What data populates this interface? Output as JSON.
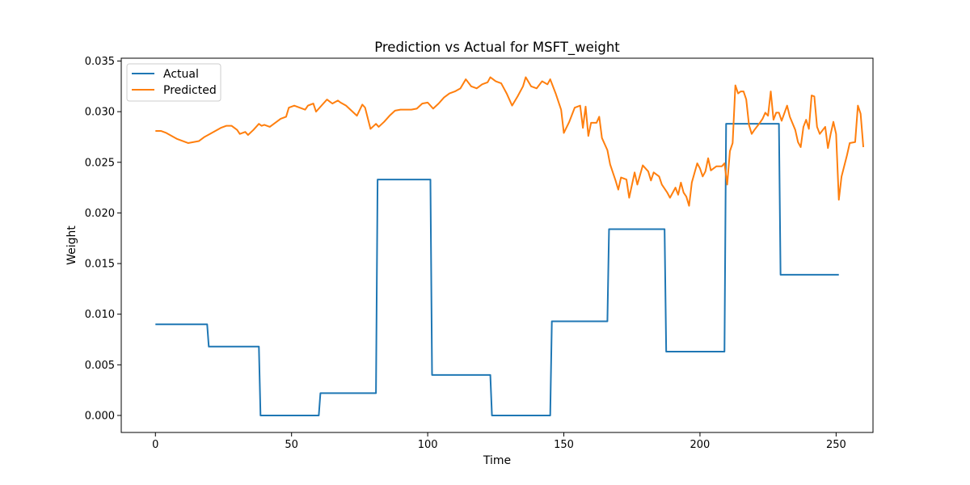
{
  "chart_data": {
    "type": "line",
    "title": "Prediction vs Actual for MSFT_weight",
    "xlabel": "Time",
    "ylabel": "Weight",
    "xlim": [
      -12.55,
      263.55
    ],
    "ylim": [
      -0.00168,
      0.03528
    ],
    "xticks": [
      0,
      50,
      100,
      150,
      200,
      250
    ],
    "xtick_labels": [
      "0",
      "50",
      "100",
      "150",
      "200",
      "250"
    ],
    "yticks": [
      0.0,
      0.005,
      0.01,
      0.015,
      0.02,
      0.025,
      0.03,
      0.035
    ],
    "ytick_labels": [
      "0.000",
      "0.005",
      "0.010",
      "0.015",
      "0.020",
      "0.025",
      "0.030",
      "0.035"
    ],
    "grid": false,
    "legend": {
      "position": "upper-left"
    },
    "series": [
      {
        "name": "Actual",
        "color": "#1f77b4",
        "step_points": [
          [
            0,
            0.009
          ],
          [
            19,
            0.009
          ],
          [
            19.6,
            0.0068
          ],
          [
            38,
            0.0068
          ],
          [
            38.6,
            0.0
          ],
          [
            60,
            0.0
          ],
          [
            60.6,
            0.0022
          ],
          [
            81,
            0.0022
          ],
          [
            81.6,
            0.0233
          ],
          [
            101,
            0.0233
          ],
          [
            101.6,
            0.004
          ],
          [
            123,
            0.004
          ],
          [
            123.6,
            0.0
          ],
          [
            145,
            0.0
          ],
          [
            145.6,
            0.0093
          ],
          [
            166,
            0.0093
          ],
          [
            166.6,
            0.0184
          ],
          [
            187,
            0.0184
          ],
          [
            187.6,
            0.0063
          ],
          [
            209,
            0.0063
          ],
          [
            209.6,
            0.0288
          ],
          [
            229,
            0.0288
          ],
          [
            229.6,
            0.0139
          ],
          [
            251,
            0.0139
          ]
        ]
      },
      {
        "name": "Predicted",
        "color": "#ff7f0e",
        "points": [
          [
            0,
            0.0281
          ],
          [
            2,
            0.0281
          ],
          [
            4,
            0.0279
          ],
          [
            6,
            0.0276
          ],
          [
            8,
            0.0273
          ],
          [
            10,
            0.0271
          ],
          [
            12,
            0.0269
          ],
          [
            14,
            0.027
          ],
          [
            16,
            0.0271
          ],
          [
            18,
            0.0275
          ],
          [
            20,
            0.0278
          ],
          [
            22,
            0.0281
          ],
          [
            24,
            0.0284
          ],
          [
            26,
            0.0286
          ],
          [
            28,
            0.0286
          ],
          [
            30,
            0.0282
          ],
          [
            31,
            0.0278
          ],
          [
            33,
            0.028
          ],
          [
            34,
            0.0277
          ],
          [
            36,
            0.0282
          ],
          [
            38,
            0.0288
          ],
          [
            39,
            0.0286
          ],
          [
            40,
            0.0287
          ],
          [
            42,
            0.0285
          ],
          [
            44,
            0.0289
          ],
          [
            46,
            0.0293
          ],
          [
            48,
            0.0295
          ],
          [
            49,
            0.0304
          ],
          [
            51,
            0.0306
          ],
          [
            53,
            0.0304
          ],
          [
            55,
            0.0302
          ],
          [
            56,
            0.0306
          ],
          [
            58,
            0.0308
          ],
          [
            59,
            0.03
          ],
          [
            61,
            0.0306
          ],
          [
            63,
            0.0312
          ],
          [
            65,
            0.0308
          ],
          [
            67,
            0.0311
          ],
          [
            68,
            0.0309
          ],
          [
            70,
            0.0306
          ],
          [
            72,
            0.0301
          ],
          [
            74,
            0.0296
          ],
          [
            76,
            0.0307
          ],
          [
            77,
            0.0304
          ],
          [
            79,
            0.0283
          ],
          [
            81,
            0.0288
          ],
          [
            82,
            0.0285
          ],
          [
            84,
            0.029
          ],
          [
            86,
            0.0296
          ],
          [
            88,
            0.0301
          ],
          [
            90,
            0.0302
          ],
          [
            92,
            0.0302
          ],
          [
            94,
            0.0302
          ],
          [
            96,
            0.0303
          ],
          [
            98,
            0.0308
          ],
          [
            100,
            0.0309
          ],
          [
            102,
            0.0303
          ],
          [
            104,
            0.0308
          ],
          [
            106,
            0.0314
          ],
          [
            108,
            0.0318
          ],
          [
            110,
            0.032
          ],
          [
            112,
            0.0323
          ],
          [
            114,
            0.0332
          ],
          [
            116,
            0.0325
          ],
          [
            118,
            0.0323
          ],
          [
            120,
            0.0327
          ],
          [
            122,
            0.0329
          ],
          [
            123,
            0.0334
          ],
          [
            125,
            0.033
          ],
          [
            127,
            0.0328
          ],
          [
            129,
            0.0318
          ],
          [
            131,
            0.0306
          ],
          [
            133,
            0.0315
          ],
          [
            135,
            0.0325
          ],
          [
            136,
            0.0334
          ],
          [
            138,
            0.0325
          ],
          [
            140,
            0.0323
          ],
          [
            142,
            0.033
          ],
          [
            144,
            0.0327
          ],
          [
            145,
            0.0332
          ],
          [
            147,
            0.0318
          ],
          [
            149,
            0.0302
          ],
          [
            150,
            0.0279
          ],
          [
            152,
            0.029
          ],
          [
            154,
            0.0304
          ],
          [
            156,
            0.0306
          ],
          [
            157,
            0.0284
          ],
          [
            158,
            0.0305
          ],
          [
            159,
            0.0276
          ],
          [
            160,
            0.0289
          ],
          [
            162,
            0.0289
          ],
          [
            163,
            0.0295
          ],
          [
            164,
            0.0274
          ],
          [
            166,
            0.0262
          ],
          [
            167,
            0.0248
          ],
          [
            169,
            0.0232
          ],
          [
            170,
            0.0223
          ],
          [
            171,
            0.0235
          ],
          [
            173,
            0.0233
          ],
          [
            174,
            0.0215
          ],
          [
            176,
            0.024
          ],
          [
            177,
            0.0228
          ],
          [
            179,
            0.0247
          ],
          [
            181,
            0.0241
          ],
          [
            182,
            0.0232
          ],
          [
            183,
            0.024
          ],
          [
            185,
            0.0236
          ],
          [
            186,
            0.0228
          ],
          [
            188,
            0.022
          ],
          [
            189,
            0.0215
          ],
          [
            191,
            0.0225
          ],
          [
            192,
            0.0218
          ],
          [
            193,
            0.023
          ],
          [
            194,
            0.022
          ],
          [
            195,
            0.0216
          ],
          [
            196,
            0.0207
          ],
          [
            197,
            0.023
          ],
          [
            199,
            0.0249
          ],
          [
            200,
            0.0244
          ],
          [
            201,
            0.0236
          ],
          [
            202,
            0.0241
          ],
          [
            203,
            0.0254
          ],
          [
            204,
            0.0242
          ],
          [
            206,
            0.0246
          ],
          [
            208,
            0.0246
          ],
          [
            209,
            0.0249
          ],
          [
            210,
            0.0228
          ],
          [
            211,
            0.0261
          ],
          [
            212,
            0.0269
          ],
          [
            213,
            0.0326
          ],
          [
            214,
            0.0318
          ],
          [
            215,
            0.032
          ],
          [
            216,
            0.032
          ],
          [
            217,
            0.0312
          ],
          [
            218,
            0.0287
          ],
          [
            219,
            0.0278
          ],
          [
            220,
            0.0282
          ],
          [
            222,
            0.0289
          ],
          [
            223,
            0.0293
          ],
          [
            224,
            0.0299
          ],
          [
            225,
            0.0296
          ],
          [
            226,
            0.032
          ],
          [
            227,
            0.0292
          ],
          [
            228,
            0.0299
          ],
          [
            229,
            0.0299
          ],
          [
            230,
            0.0291
          ],
          [
            232,
            0.0306
          ],
          [
            233,
            0.0295
          ],
          [
            235,
            0.0282
          ],
          [
            236,
            0.027
          ],
          [
            237,
            0.0265
          ],
          [
            238,
            0.0285
          ],
          [
            239,
            0.0292
          ],
          [
            240,
            0.0283
          ],
          [
            241,
            0.0316
          ],
          [
            242,
            0.0315
          ],
          [
            243,
            0.0285
          ],
          [
            244,
            0.0278
          ],
          [
            246,
            0.0285
          ],
          [
            247,
            0.0264
          ],
          [
            248,
            0.0278
          ],
          [
            249,
            0.029
          ],
          [
            250,
            0.0278
          ],
          [
            251,
            0.0213
          ],
          [
            252,
            0.0236
          ],
          [
            254,
            0.0257
          ],
          [
            255,
            0.0269
          ],
          [
            257,
            0.027
          ],
          [
            258,
            0.0306
          ],
          [
            259,
            0.0298
          ],
          [
            260,
            0.0265
          ]
        ]
      }
    ]
  }
}
